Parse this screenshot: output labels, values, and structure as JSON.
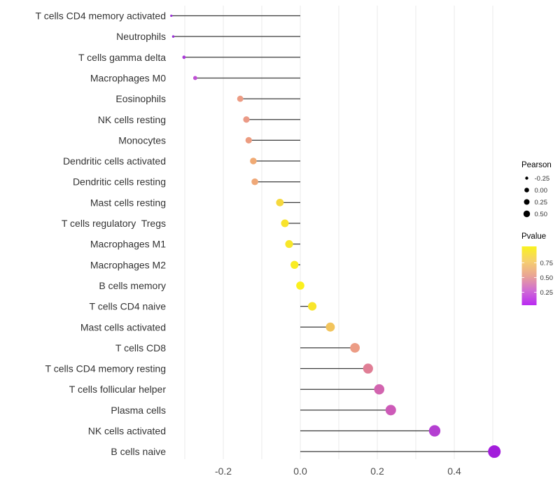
{
  "chart_data": {
    "type": "lollipop",
    "orientation": "horizontal",
    "title": "",
    "xlabel": "",
    "ylabel": "",
    "x_axis": {
      "range": [
        -0.36,
        0.53
      ],
      "ticks": [
        {
          "value": -0.2,
          "label": "-0.2"
        },
        {
          "value": 0.0,
          "label": "0.0"
        },
        {
          "value": 0.2,
          "label": "0.2"
        },
        {
          "value": 0.4,
          "label": "0.4"
        }
      ],
      "gridlines": [
        -0.3,
        -0.2,
        -0.1,
        0.0,
        0.1,
        0.2,
        0.3,
        0.4,
        0.5
      ]
    },
    "rows": [
      {
        "label": "T cells CD4 memory activated",
        "pearson": -0.335,
        "color": "#9a2fd6"
      },
      {
        "label": "Neutrophils",
        "pearson": -0.33,
        "color": "#9a2fd6"
      },
      {
        "label": "T cells gamma delta",
        "pearson": -0.302,
        "color": "#aa39d8"
      },
      {
        "label": "Macrophages M0",
        "pearson": -0.273,
        "color": "#bf4fd4"
      },
      {
        "label": "Eosinophils",
        "pearson": -0.156,
        "color": "#ec9c84"
      },
      {
        "label": "NK cells resting",
        "pearson": -0.14,
        "color": "#eb9a86"
      },
      {
        "label": "Monocytes",
        "pearson": -0.134,
        "color": "#ec9c80"
      },
      {
        "label": "Dendritic cells activated",
        "pearson": -0.122,
        "color": "#f0aa74"
      },
      {
        "label": "Dendritic cells resting",
        "pearson": -0.118,
        "color": "#efa878"
      },
      {
        "label": "Mast cells resting",
        "pearson": -0.053,
        "color": "#f5d83e"
      },
      {
        "label": "T cells regulatory  Tregs",
        "pearson": -0.04,
        "color": "#f8e32c"
      },
      {
        "label": "Macrophages M1",
        "pearson": -0.029,
        "color": "#f8e72a"
      },
      {
        "label": "Macrophages M2",
        "pearson": -0.015,
        "color": "#f9ec24"
      },
      {
        "label": "B cells memory",
        "pearson": 0.0,
        "color": "#fbf01e"
      },
      {
        "label": "T cells CD4 naive",
        "pearson": 0.031,
        "color": "#f8e52b"
      },
      {
        "label": "Mast cells activated",
        "pearson": 0.078,
        "color": "#f2c45c"
      },
      {
        "label": "T cells CD8",
        "pearson": 0.142,
        "color": "#ec9c85"
      },
      {
        "label": "T cells CD4 memory resting",
        "pearson": 0.176,
        "color": "#e07e95"
      },
      {
        "label": "T cells follicular helper",
        "pearson": 0.205,
        "color": "#d264af"
      },
      {
        "label": "Plasma cells",
        "pearson": 0.235,
        "color": "#cd5ab8"
      },
      {
        "label": "NK cells activated",
        "pearson": 0.349,
        "color": "#b43fd1"
      },
      {
        "label": "B cells naive",
        "pearson": 0.504,
        "color": "#a21ddb"
      }
    ],
    "legend_position": "right",
    "legend": {
      "pearson": {
        "title": "Pearson",
        "dot_color": "#000000",
        "entries": [
          {
            "label": "-0.25",
            "r": 2.2
          },
          {
            "label": "0.00",
            "r": 3.3
          },
          {
            "label": "0.25",
            "r": 4.0
          },
          {
            "label": "0.50",
            "r": 4.7
          }
        ]
      },
      "pvalue": {
        "title": "Pvalue",
        "tick_labels": [
          "0.75",
          "0.50",
          "0.25"
        ],
        "gradient_top_to_bottom": [
          "#f9f21e",
          "#f6d06e",
          "#e9a495",
          "#d06cd4",
          "#b929f2"
        ]
      }
    },
    "style": {
      "background": "#ffffff",
      "gridline_color": "#e9e9e9",
      "stem_color": "#3a3a3a",
      "axis_text_color": "#4d4d4d",
      "y_label_color": "#333333",
      "legend_title_color": "#000000",
      "legend_label_color": "#333333"
    }
  }
}
